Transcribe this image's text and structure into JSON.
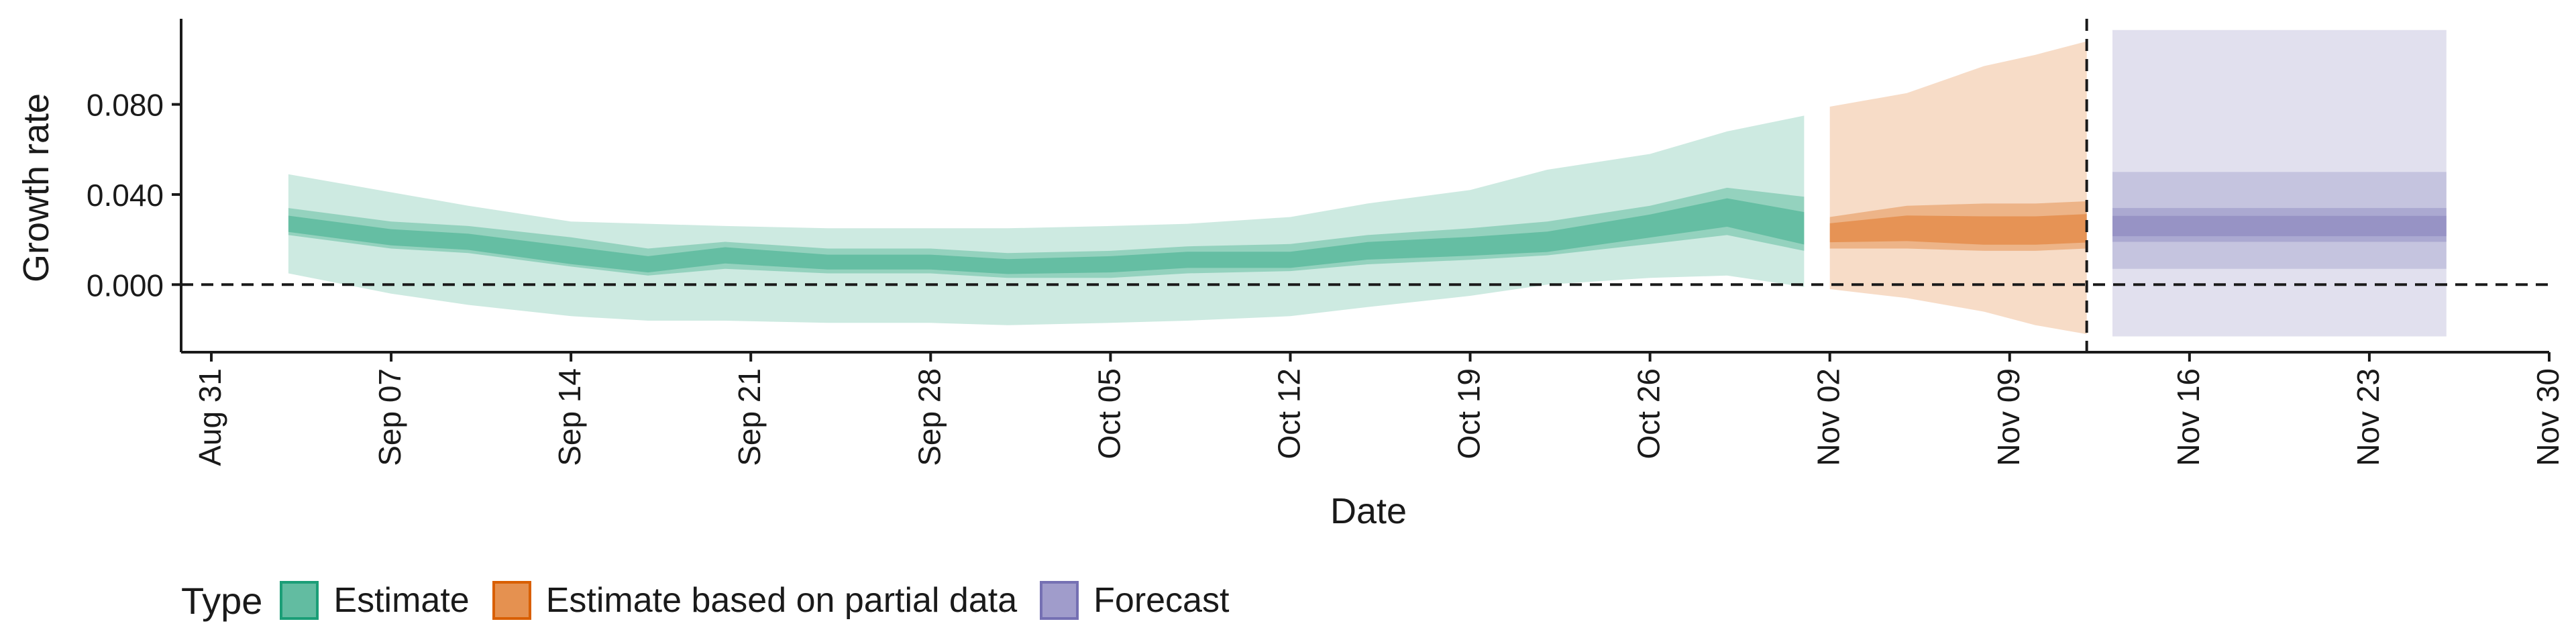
{
  "chart_data": {
    "type": "area",
    "title": "",
    "xlabel": "Date",
    "ylabel": "Growth rate",
    "x_ticks": [
      "Aug 31",
      "Sep 07",
      "Sep 14",
      "Sep 21",
      "Sep 28",
      "Oct 05",
      "Oct 12",
      "Oct 19",
      "Oct 26",
      "Nov 02",
      "Nov 09",
      "Nov 16",
      "Nov 23",
      "Nov 30"
    ],
    "y_ticks": [
      "0.000",
      "0.040",
      "0.080"
    ],
    "xlim": [
      "2020-08-31",
      "2020-11-30"
    ],
    "ylim": [
      -0.03,
      0.118
    ],
    "grid": false,
    "reference_lines": {
      "horizontal_y": 0,
      "vertical_date": "2020-11-12",
      "style": "dashed"
    },
    "legend": {
      "position": "bottom-left",
      "title": "Type",
      "entries": [
        {
          "label": "Estimate",
          "color": "#1b9e77"
        },
        {
          "label": "Estimate based on partial data",
          "color": "#d95f02"
        },
        {
          "label": "Forecast",
          "color": "#7570b3"
        }
      ]
    },
    "series": [
      {
        "name": "Estimate",
        "color": "#1b9e77",
        "dates": [
          "2020-09-03",
          "2020-09-07",
          "2020-09-10",
          "2020-09-14",
          "2020-09-17",
          "2020-09-20",
          "2020-09-24",
          "2020-09-28",
          "2020-10-01",
          "2020-10-05",
          "2020-10-08",
          "2020-10-12",
          "2020-10-15",
          "2020-10-19",
          "2020-10-22",
          "2020-10-26",
          "2020-10-29",
          "2020-11-01"
        ],
        "median": [
          0.027,
          0.021,
          0.019,
          0.013,
          0.009,
          0.013,
          0.01,
          0.01,
          0.008,
          0.009,
          0.011,
          0.011,
          0.015,
          0.017,
          0.019,
          0.026,
          0.032,
          0.025
        ],
        "lower_50": [
          0.022,
          0.016,
          0.014,
          0.008,
          0.004,
          0.007,
          0.005,
          0.005,
          0.003,
          0.003,
          0.005,
          0.006,
          0.009,
          0.011,
          0.013,
          0.018,
          0.022,
          0.015
        ],
        "upper_50": [
          0.034,
          0.028,
          0.026,
          0.021,
          0.016,
          0.019,
          0.016,
          0.016,
          0.014,
          0.015,
          0.017,
          0.018,
          0.022,
          0.025,
          0.028,
          0.035,
          0.043,
          0.039
        ],
        "lower_90": [
          0.005,
          -0.004,
          -0.009,
          -0.014,
          -0.016,
          -0.016,
          -0.017,
          -0.017,
          -0.018,
          -0.017,
          -0.016,
          -0.014,
          -0.01,
          -0.005,
          0.0,
          0.003,
          0.004,
          -0.001
        ],
        "upper_90": [
          0.049,
          0.041,
          0.035,
          0.028,
          0.027,
          0.026,
          0.025,
          0.025,
          0.025,
          0.026,
          0.027,
          0.03,
          0.036,
          0.042,
          0.051,
          0.058,
          0.068,
          0.075
        ]
      },
      {
        "name": "Estimate based on partial data",
        "color": "#d95f02",
        "dates": [
          "2020-11-02",
          "2020-11-05",
          "2020-11-08",
          "2020-11-10",
          "2020-11-12"
        ],
        "median": [
          0.023,
          0.025,
          0.024,
          0.024,
          0.025
        ],
        "lower_50": [
          0.016,
          0.016,
          0.015,
          0.015,
          0.016
        ],
        "upper_50": [
          0.03,
          0.035,
          0.036,
          0.036,
          0.037
        ],
        "lower_90": [
          -0.002,
          -0.006,
          -0.012,
          -0.018,
          -0.022
        ],
        "upper_90": [
          0.079,
          0.085,
          0.097,
          0.102,
          0.108
        ]
      },
      {
        "name": "Forecast",
        "color": "#7570b3",
        "dates": [
          "2020-11-13",
          "2020-11-26"
        ],
        "median": [
          0.026,
          0.026
        ],
        "lower_50": [
          0.019,
          0.019
        ],
        "upper_50": [
          0.034,
          0.034
        ],
        "lower_90": [
          0.007,
          0.007
        ],
        "upper_90": [
          0.05,
          0.05
        ],
        "lower_outer": [
          -0.023,
          -0.023
        ],
        "upper_outer": [
          0.113,
          0.113
        ]
      }
    ]
  }
}
